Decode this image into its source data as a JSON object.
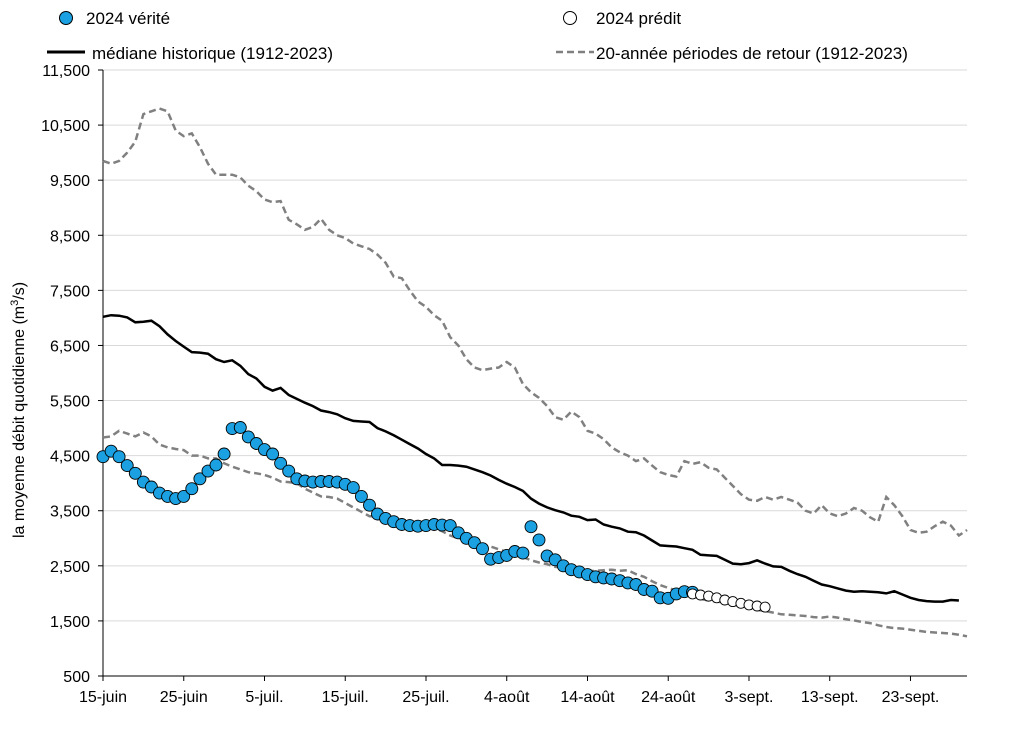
{
  "chart_data": {
    "type": "line",
    "ylabel": "la moyenne débit quotidienne (m³/s)",
    "ylabel_parts": {
      "pre": "la moyenne débit quotidienne (m",
      "sup": "3",
      "post": "/s)"
    },
    "ylim": [
      500,
      11500
    ],
    "yticks": [
      500,
      1500,
      2500,
      3500,
      4500,
      5500,
      6500,
      7500,
      8500,
      9500,
      10500,
      11500
    ],
    "ytick_labels": [
      "500",
      "1,500",
      "2,500",
      "3,500",
      "4,500",
      "5,500",
      "6,500",
      "7,500",
      "8,500",
      "9,500",
      "10,500",
      "11,500"
    ],
    "x_start_date": "2024-06-15",
    "x_end_date": "2024-09-30",
    "xticks": [
      {
        "date": "2024-06-15",
        "label": "15-juin"
      },
      {
        "date": "2024-06-25",
        "label": "25-juin"
      },
      {
        "date": "2024-07-05",
        "label": "5-juil."
      },
      {
        "date": "2024-07-15",
        "label": "15-juil."
      },
      {
        "date": "2024-07-25",
        "label": "25-juil."
      },
      {
        "date": "2024-08-04",
        "label": "4-août"
      },
      {
        "date": "2024-08-14",
        "label": "14-août"
      },
      {
        "date": "2024-08-24",
        "label": "24-août"
      },
      {
        "date": "2024-09-03",
        "label": "3-sept."
      },
      {
        "date": "2024-09-13",
        "label": "13-sept."
      },
      {
        "date": "2024-09-23",
        "label": "23-sept."
      }
    ],
    "grid": true,
    "legend": [
      {
        "key": "verite",
        "label": "2024 vérité"
      },
      {
        "key": "predit",
        "label": "2024 prédit"
      },
      {
        "key": "mediane",
        "label": "médiane historique (1912-2023)"
      },
      {
        "key": "retour",
        "label": "20-année périodes de retour (1912-2023)"
      }
    ],
    "legend_position": "top",
    "colors": {
      "verite": "#1ba1e2",
      "marker_edge": "#000000",
      "mediane": "#000000",
      "retour": "#808080",
      "grid": "#d9d9d9"
    },
    "series": [
      {
        "key": "mediane",
        "start_date": "2024-06-15",
        "values": [
          7020,
          7050,
          7040,
          7010,
          6920,
          6930,
          6950,
          6850,
          6700,
          6580,
          6480,
          6380,
          6370,
          6350,
          6250,
          6200,
          6230,
          6130,
          5980,
          5900,
          5750,
          5680,
          5730,
          5600,
          5530,
          5460,
          5400,
          5320,
          5290,
          5250,
          5180,
          5130,
          5120,
          5110,
          5000,
          4940,
          4870,
          4790,
          4710,
          4630,
          4530,
          4450,
          4330,
          4330,
          4320,
          4300,
          4250,
          4200,
          4140,
          4060,
          3990,
          3930,
          3860,
          3720,
          3630,
          3560,
          3510,
          3470,
          3410,
          3390,
          3330,
          3340,
          3250,
          3210,
          3180,
          3120,
          3110,
          3050,
          2960,
          2870,
          2860,
          2850,
          2820,
          2790,
          2700,
          2690,
          2680,
          2610,
          2540,
          2530,
          2550,
          2600,
          2540,
          2490,
          2480,
          2410,
          2350,
          2300,
          2230,
          2160,
          2130,
          2090,
          2050,
          2030,
          2040,
          2030,
          2020,
          2000,
          2040,
          1980,
          1920,
          1880,
          1860,
          1850,
          1850,
          1880,
          1870
        ]
      },
      {
        "key": "retour_haut",
        "start_date": "2024-06-15",
        "values": [
          9850,
          9800,
          9850,
          10000,
          10200,
          10700,
          10750,
          10800,
          10750,
          10400,
          10300,
          10350,
          10100,
          9800,
          9600,
          9600,
          9600,
          9550,
          9400,
          9300,
          9150,
          9100,
          9120,
          8780,
          8700,
          8600,
          8650,
          8800,
          8600,
          8500,
          8450,
          8350,
          8300,
          8250,
          8150,
          8000,
          7750,
          7720,
          7500,
          7300,
          7200,
          7050,
          6950,
          6650,
          6500,
          6250,
          6100,
          6050,
          6080,
          6100,
          6200,
          6100,
          5800,
          5650,
          5550,
          5400,
          5200,
          5150,
          5300,
          5200,
          4950,
          4900,
          4800,
          4650,
          4560,
          4500,
          4400,
          4450,
          4320,
          4200,
          4150,
          4120,
          4400,
          4350,
          4380,
          4280,
          4250,
          4100,
          3950,
          3800,
          3700,
          3680,
          3750,
          3700,
          3750,
          3700,
          3650,
          3500,
          3450,
          3600,
          3450,
          3400,
          3450,
          3550,
          3500,
          3380,
          3300,
          3750,
          3600,
          3400,
          3150,
          3100,
          3120,
          3220,
          3300,
          3230,
          3050,
          3150
        ]
      },
      {
        "key": "retour_bas",
        "start_date": "2024-06-15",
        "values": [
          4830,
          4850,
          4950,
          4900,
          4850,
          4920,
          4850,
          4700,
          4650,
          4620,
          4600,
          4500,
          4500,
          4450,
          4450,
          4360,
          4300,
          4250,
          4200,
          4180,
          4150,
          4100,
          4030,
          4020,
          4000,
          3900,
          3830,
          3760,
          3750,
          3720,
          3640,
          3560,
          3480,
          3400,
          3400,
          3350,
          3280,
          3200,
          3180,
          3200,
          3200,
          3180,
          3130,
          3050,
          3000,
          2980,
          2920,
          2880,
          2850,
          2800,
          2750,
          2700,
          2660,
          2600,
          2560,
          2530,
          2480,
          2470,
          2440,
          2420,
          2400,
          2410,
          2420,
          2430,
          2410,
          2420,
          2350,
          2300,
          2220,
          2150,
          2100,
          2050,
          2000,
          1950,
          1900,
          1870,
          1850,
          1830,
          1800,
          1760,
          1730,
          1700,
          1680,
          1650,
          1620,
          1610,
          1600,
          1590,
          1570,
          1560,
          1580,
          1560,
          1530,
          1510,
          1480,
          1460,
          1420,
          1390,
          1370,
          1360,
          1340,
          1320,
          1300,
          1290,
          1280,
          1270,
          1250,
          1220
        ]
      },
      {
        "key": "verite",
        "start_date": "2024-06-15",
        "values": [
          4480,
          4580,
          4480,
          4320,
          4180,
          4020,
          3930,
          3820,
          3760,
          3720,
          3760,
          3900,
          4080,
          4220,
          4330,
          4530,
          4990,
          5010,
          4840,
          4720,
          4610,
          4530,
          4360,
          4220,
          4080,
          4040,
          4020,
          4030,
          4030,
          4020,
          3980,
          3920,
          3760,
          3600,
          3440,
          3360,
          3300,
          3250,
          3230,
          3220,
          3230,
          3250,
          3240,
          3230,
          3100,
          3000,
          2920,
          2810,
          2620,
          2650,
          2690,
          2760,
          2730,
          3210,
          2970,
          2680,
          2610,
          2500,
          2430,
          2390,
          2340,
          2300,
          2280,
          2260,
          2230,
          2190,
          2160,
          2070,
          2040,
          1920,
          1910,
          1990,
          2030,
          2020
        ]
      },
      {
        "key": "predit",
        "start_date": "2024-08-27",
        "values": [
          1990,
          1970,
          1950,
          1920,
          1880,
          1850,
          1820,
          1790,
          1770,
          1750
        ]
      }
    ]
  }
}
